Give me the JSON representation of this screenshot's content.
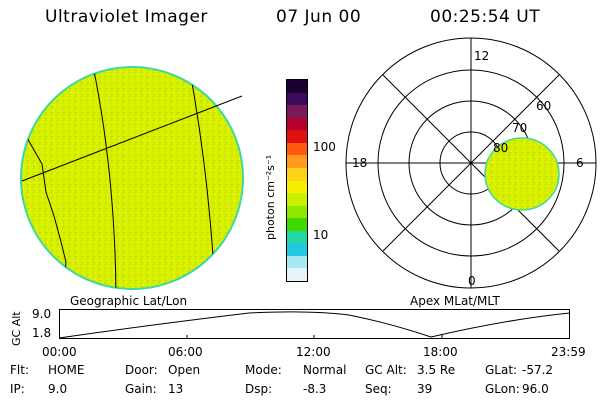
{
  "header": {
    "title": "Ultraviolet Imager",
    "date": "07 Jun 00",
    "time": "00:25:54 UT"
  },
  "geo_panel": {
    "label": "Geographic Lat/Lon"
  },
  "apex_panel": {
    "label": "Apex MLat/MLT",
    "mlt_labels": {
      "top": "12",
      "left": "18",
      "right": "6",
      "bottom": "0"
    },
    "mlat_labels": [
      "60",
      "70",
      "80"
    ]
  },
  "colorbar": {
    "unit_label": "photon cm⁻²s⁻¹",
    "ticks": [
      "100",
      "10"
    ],
    "colors": [
      "#1a0033",
      "#3a0a5c",
      "#7a1a5a",
      "#b4002a",
      "#e01010",
      "#ff5a10",
      "#ff9a1a",
      "#ffd21a",
      "#f4f000",
      "#c8f000",
      "#90e800",
      "#40d800",
      "#20d8a0",
      "#20c8e0",
      "#a8e8f0",
      "#e4f4f8"
    ]
  },
  "altitude_plot": {
    "ylabel": "GC Alt",
    "yticks": [
      "9.0",
      "1.8"
    ],
    "xticks": [
      "00:00",
      "06:00",
      "12:00",
      "18:00",
      "23:59"
    ]
  },
  "info": [
    [
      {
        "key": "Flt:",
        "val": "HOME"
      },
      {
        "key": "Door:",
        "val": "Open"
      },
      {
        "key": "Mode:",
        "val": "Normal"
      },
      {
        "key": "GC Alt:",
        "val": "3.5 Re"
      },
      {
        "key": "GLat:",
        "val": "-57.2"
      }
    ],
    [
      {
        "key": "IP:",
        "val": "9.0"
      },
      {
        "key": "Gain:",
        "val": "13"
      },
      {
        "key": "Dsp:",
        "val": "-8.3"
      },
      {
        "key": "Seq:",
        "val": "39"
      },
      {
        "key": "GLon:",
        "val": "96.0"
      }
    ]
  ],
  "image_colors": {
    "fill": "#d8f000",
    "rim": "#40d8a0"
  }
}
